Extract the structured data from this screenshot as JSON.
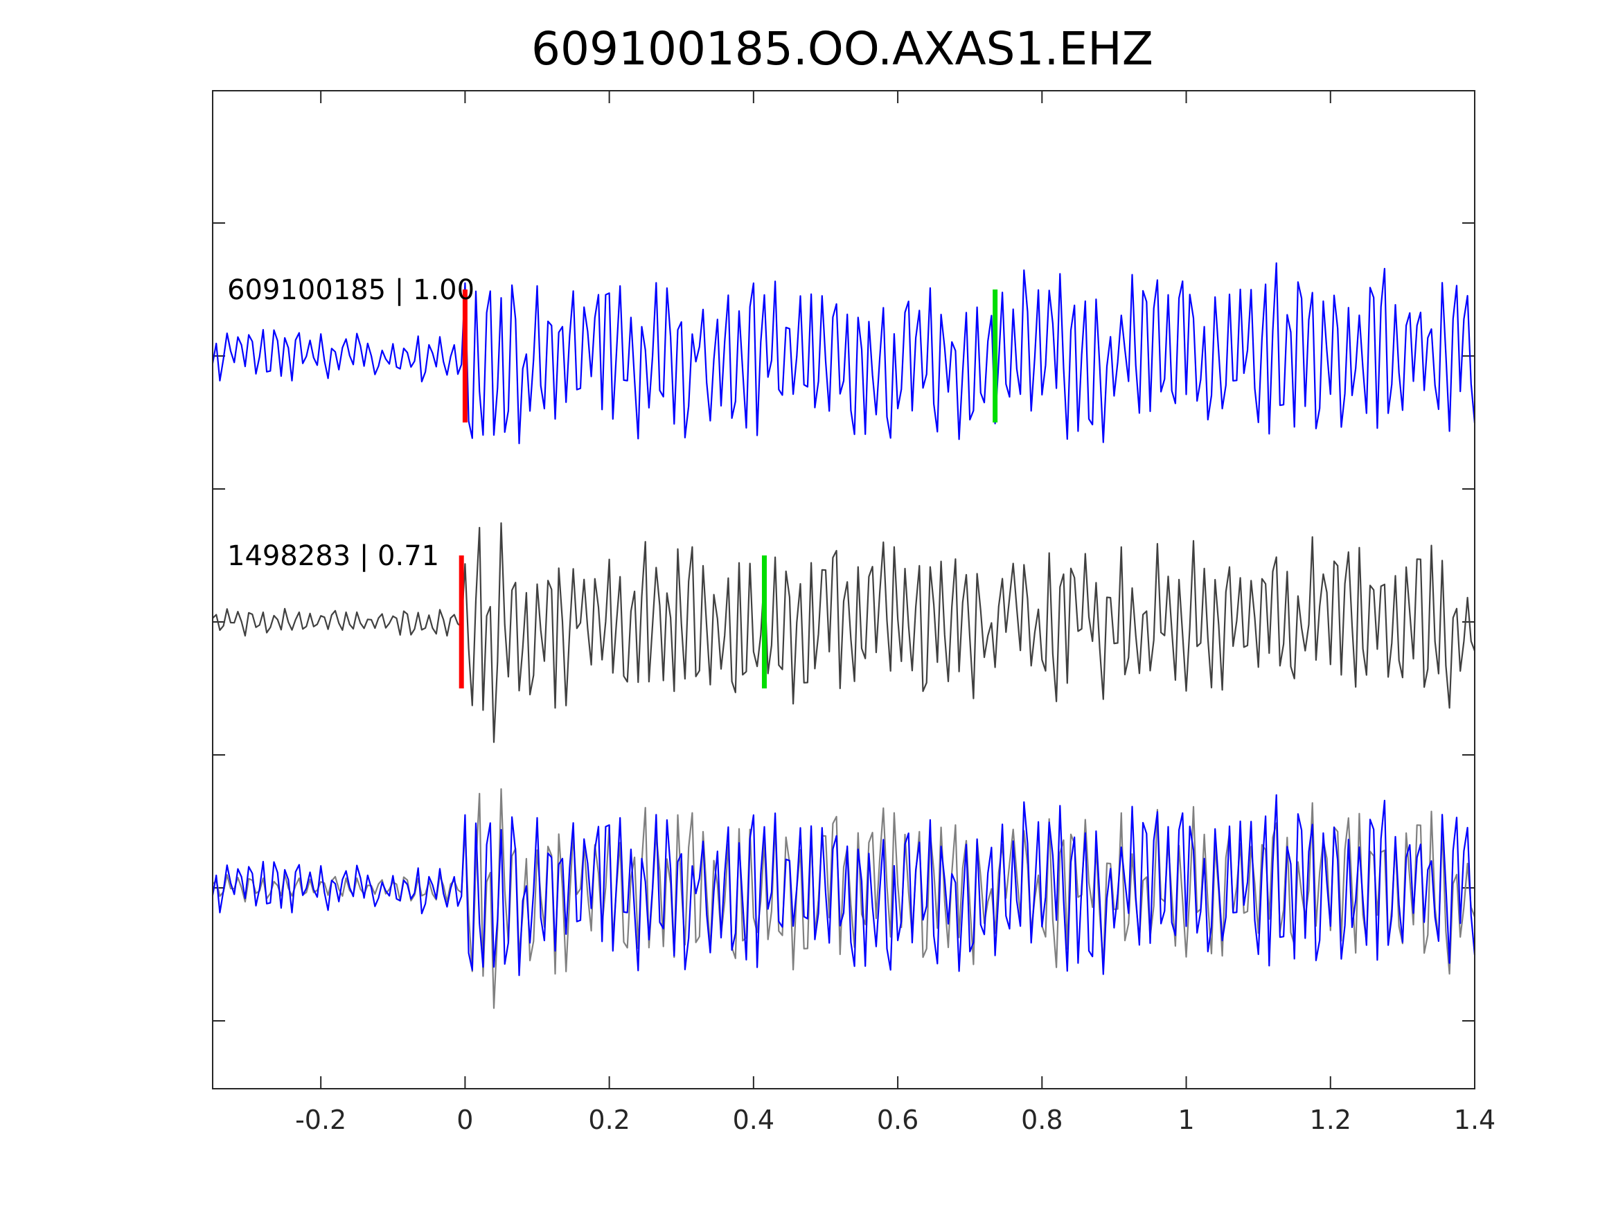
{
  "chart_data": {
    "type": "line",
    "title": "609100185.OO.AXAS1.EHZ",
    "xlabel": "",
    "ylabel": "",
    "xlim": [
      -0.35,
      1.4
    ],
    "x_ticks": [
      -0.2,
      0,
      0.2,
      0.4,
      0.6,
      0.8,
      1,
      1.2,
      1.4
    ],
    "x_tick_labels": [
      "-0.2",
      "0",
      "0.2",
      "0.4",
      "0.6",
      "0.8",
      "1",
      "1.2",
      "1.4"
    ],
    "y_ticks": 7,
    "y_tick_labels_visible": false,
    "grid": false,
    "traces": [
      {
        "name": "609100185 | 1.00",
        "event_id": "609100185",
        "correlation": "1.00",
        "color": "#0000ff",
        "p_pick": 0.0,
        "s_pick": 0.735,
        "panel": 1
      },
      {
        "name": "1498283 | 0.71",
        "event_id": "1498283",
        "correlation": "0.71",
        "color": "#404040",
        "p_pick": -0.005,
        "s_pick": 0.415,
        "panel": 2
      }
    ],
    "overlay": {
      "panel": 3,
      "series": [
        {
          "source": "1498283",
          "color": "#808080"
        },
        {
          "source": "609100185",
          "color": "#0000ff"
        }
      ]
    },
    "pick_colors": {
      "p": "#ff0000",
      "s": "#00dd00"
    }
  }
}
